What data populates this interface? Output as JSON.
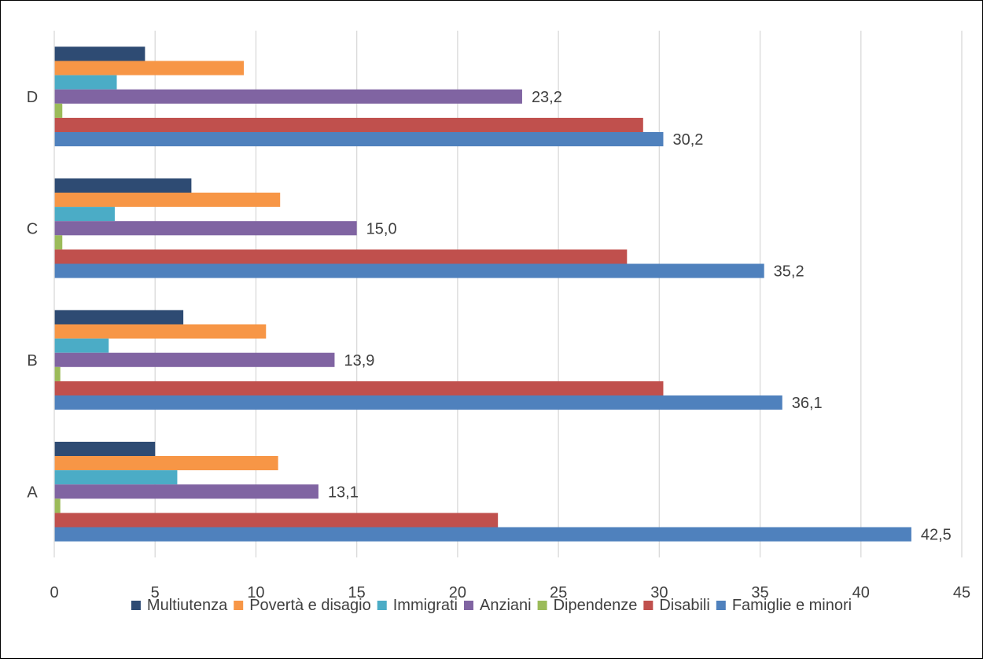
{
  "chart_data": {
    "type": "bar",
    "orientation": "horizontal",
    "categories": [
      "A",
      "B",
      "C",
      "D"
    ],
    "series": [
      {
        "name": "Multiutenza",
        "color": "#2e4b73",
        "values": [
          5.0,
          6.4,
          6.8,
          4.5
        ]
      },
      {
        "name": "Povertà e disagio",
        "color": "#f79646",
        "values": [
          11.1,
          10.5,
          11.2,
          9.4
        ]
      },
      {
        "name": "Immigrati",
        "color": "#4bacc6",
        "values": [
          6.1,
          2.7,
          3.0,
          3.1
        ]
      },
      {
        "name": "Anziani",
        "color": "#8064a2",
        "values": [
          13.1,
          13.9,
          15.0,
          23.2
        ],
        "labels": [
          "13,1",
          "13,9",
          "15,0",
          "23,2"
        ]
      },
      {
        "name": "Dipendenze",
        "color": "#9bbb59",
        "values": [
          0.3,
          0.3,
          0.4,
          0.4
        ]
      },
      {
        "name": "Disabili",
        "color": "#c0504d",
        "values": [
          22.0,
          30.2,
          28.4,
          29.2
        ]
      },
      {
        "name": "Famiglie e minori",
        "color": "#4f81bd",
        "values": [
          42.5,
          36.1,
          35.2,
          30.2
        ],
        "labels": [
          "42,5",
          "36,1",
          "35,2",
          "30,2"
        ]
      }
    ],
    "xlim": [
      0,
      45
    ],
    "xticks": [
      0,
      5,
      10,
      15,
      20,
      25,
      30,
      35,
      40,
      45
    ],
    "xtick_labels": [
      "0",
      "5",
      "10",
      "15",
      "20",
      "25",
      "30",
      "35",
      "40",
      "45"
    ],
    "grid": "vertical",
    "legend_position": "bottom",
    "title": "",
    "xlabel": "",
    "ylabel": ""
  }
}
